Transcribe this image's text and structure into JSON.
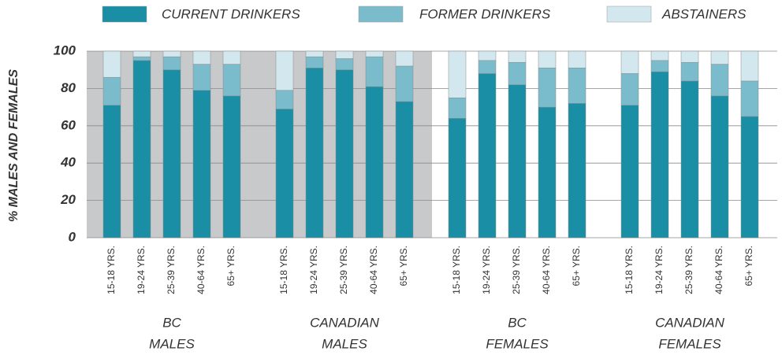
{
  "chart_data": {
    "type": "stacked-bar",
    "y_label": "% MALES AND FEMALES",
    "categories": [
      "15-18 YRS.",
      "19-24 YRS.",
      "25-39 YRS.",
      "40-64 YRS.",
      "65+ YRS.",
      "15-18 YRS.",
      "19-24 YRS.",
      "25-39 YRS.",
      "40-64 YRS.",
      "65+ YRS.",
      "15-18 YRS.",
      "19-24 YRS.",
      "25-39 YRS.",
      "40-64 YRS.",
      "65+ YRS.",
      "15-18 YRS.",
      "19-24 YRS.",
      "25-39 YRS.",
      "40-64 YRS.",
      "65+ YRS."
    ],
    "groups": [
      {
        "lines": [
          "BC",
          "MALES"
        ],
        "shaded": true
      },
      {
        "lines": [
          "CANADIAN",
          "MALES"
        ],
        "shaded": true
      },
      {
        "lines": [
          "BC",
          "FEMALES"
        ],
        "shaded": false
      },
      {
        "lines": [
          "CANADIAN",
          "FEMALES"
        ],
        "shaded": false
      }
    ],
    "series": [
      {
        "name": "CURRENT DRINKERS",
        "color": "#1a8ea5",
        "values": [
          71,
          95,
          90,
          79,
          76,
          69,
          91,
          90,
          81,
          73,
          64,
          88,
          82,
          70,
          72,
          71,
          89,
          84,
          76,
          65
        ]
      },
      {
        "name": "FORMER DRINKERS",
        "color": "#7bbccc",
        "values": [
          15,
          2,
          7,
          14,
          17,
          10,
          6,
          6,
          16,
          19,
          11,
          7,
          12,
          21,
          19,
          17,
          6,
          10,
          17,
          19
        ]
      },
      {
        "name": "ABSTAINERS",
        "color": "#d3e8ee",
        "values": [
          14,
          3,
          3,
          7,
          7,
          21,
          3,
          4,
          3,
          8,
          25,
          5,
          6,
          9,
          9,
          12,
          5,
          6,
          7,
          16
        ]
      }
    ],
    "ylim": [
      0,
      100
    ],
    "yticks": [
      0,
      20,
      40,
      60,
      80,
      100
    ],
    "grid": true,
    "shade_color": "#c8c9cb"
  }
}
